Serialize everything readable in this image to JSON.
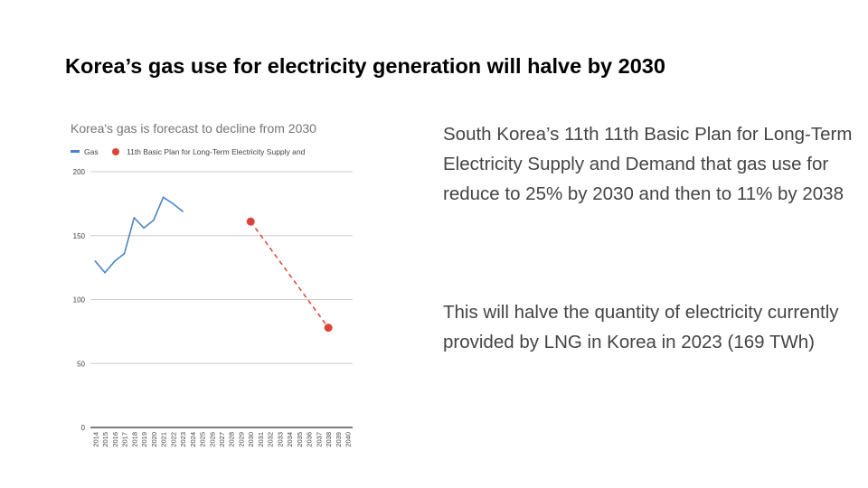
{
  "slide": {
    "title": "Korea’s gas use for electricity generation will halve by 2030",
    "paragraphs": [
      "South Korea’s 11th 11th Basic Plan for Long-Term Electricity Supply and Demand that gas use for reduce to 25% by 2030 and then to 11% by 2038",
      "This will halve the quantity of electricity currently provided by LNG in Korea in 2023 (169 TWh)"
    ]
  },
  "colors": {
    "gas_line": "#4a86c8",
    "plan_marker": "#db4437",
    "grid": "#cccccc",
    "axis": "#333333",
    "title_gray": "#757575",
    "tick_text": "#444444"
  },
  "chart_data": {
    "type": "line",
    "title": "Korea's gas is forecast to decline from 2030",
    "xlabel": "",
    "ylabel": "",
    "ylim": [
      0,
      200
    ],
    "yticks": [
      0,
      50,
      100,
      150,
      200
    ],
    "grid": true,
    "legend_position": "top",
    "categories": [
      "2014",
      "2015",
      "2016",
      "2017",
      "2018",
      "2019",
      "2020",
      "2021",
      "2022",
      "2023",
      "2024",
      "2025",
      "2026",
      "2027",
      "2028",
      "2029",
      "2030",
      "2031",
      "2032",
      "2033",
      "2034",
      "2035",
      "2036",
      "2037",
      "2038",
      "2039",
      "2040"
    ],
    "series": [
      {
        "name": "Gas",
        "style": "line",
        "x": [
          "2014",
          "2015",
          "2016",
          "2017",
          "2018",
          "2019",
          "2020",
          "2021",
          "2022",
          "2023"
        ],
        "values": [
          130,
          121,
          130,
          136,
          164,
          156,
          162,
          180,
          175,
          169
        ]
      },
      {
        "name": "11th Basic Plan for Long-Term Electricity Supply and",
        "style": "dashed-points",
        "x": [
          "2030",
          "2038"
        ],
        "values": [
          161,
          78
        ]
      }
    ]
  }
}
